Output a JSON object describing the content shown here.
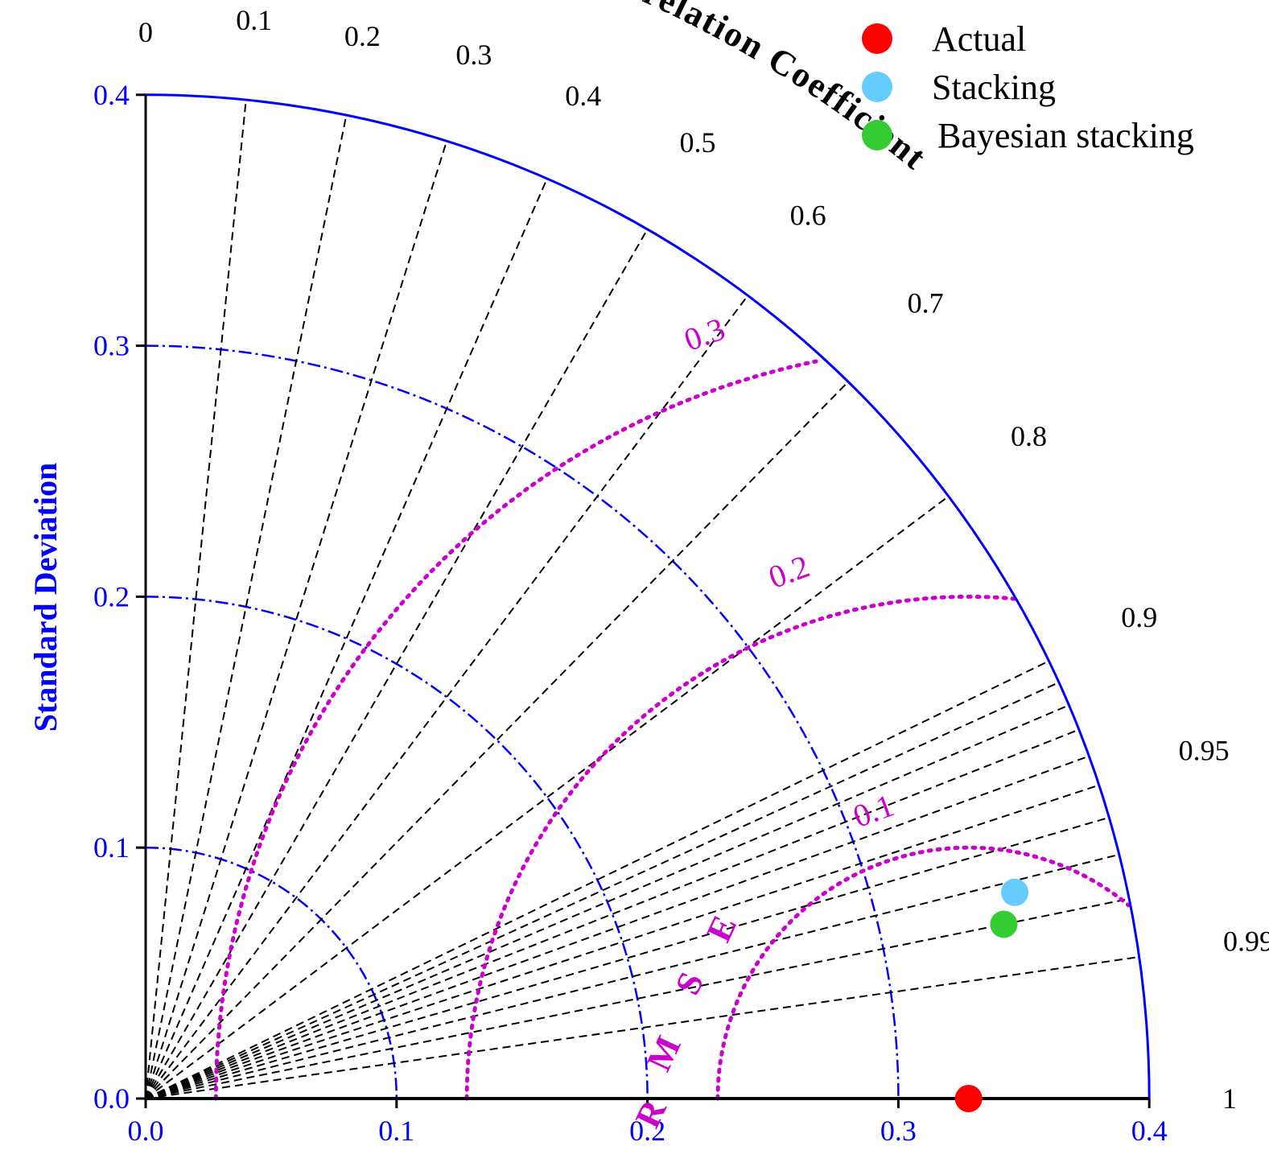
{
  "chart_data": {
    "type": "taylor",
    "title": "",
    "ylabel": "Standard Deviation",
    "angular_label": "Correlation Coefficient",
    "rmse_label": "RMSE",
    "std_range": [
      0,
      0.4
    ],
    "std_ticks": [
      "0.0",
      "0.1",
      "0.2",
      "0.3",
      "0.4"
    ],
    "correlation_ticks": [
      "0",
      "0.1",
      "0.2",
      "0.3",
      "0.4",
      "0.5",
      "0.6",
      "0.7",
      "0.8",
      "0.9",
      "0.95",
      "0.99",
      "1"
    ],
    "rmse_contours": [
      "0.1",
      "0.2",
      "0.3"
    ],
    "reference_std": 0.328,
    "points": [
      {
        "name": "Actual",
        "std": 0.328,
        "correlation": 1.0,
        "color": "#ff0000"
      },
      {
        "name": "Stacking",
        "std": 0.356,
        "correlation": 0.973,
        "color": "#66ccff"
      },
      {
        "name": "Bayesian stacking",
        "std": 0.349,
        "correlation": 0.98,
        "color": "#33cc33"
      }
    ],
    "colors": {
      "std_axis": "#0000ff",
      "correlation_lines": "#000000",
      "rmse_contours": "#cc00cc"
    },
    "legend": {
      "position": "top-right",
      "entries": [
        "Actual",
        "Stacking",
        "Bayesian stacking"
      ]
    }
  }
}
